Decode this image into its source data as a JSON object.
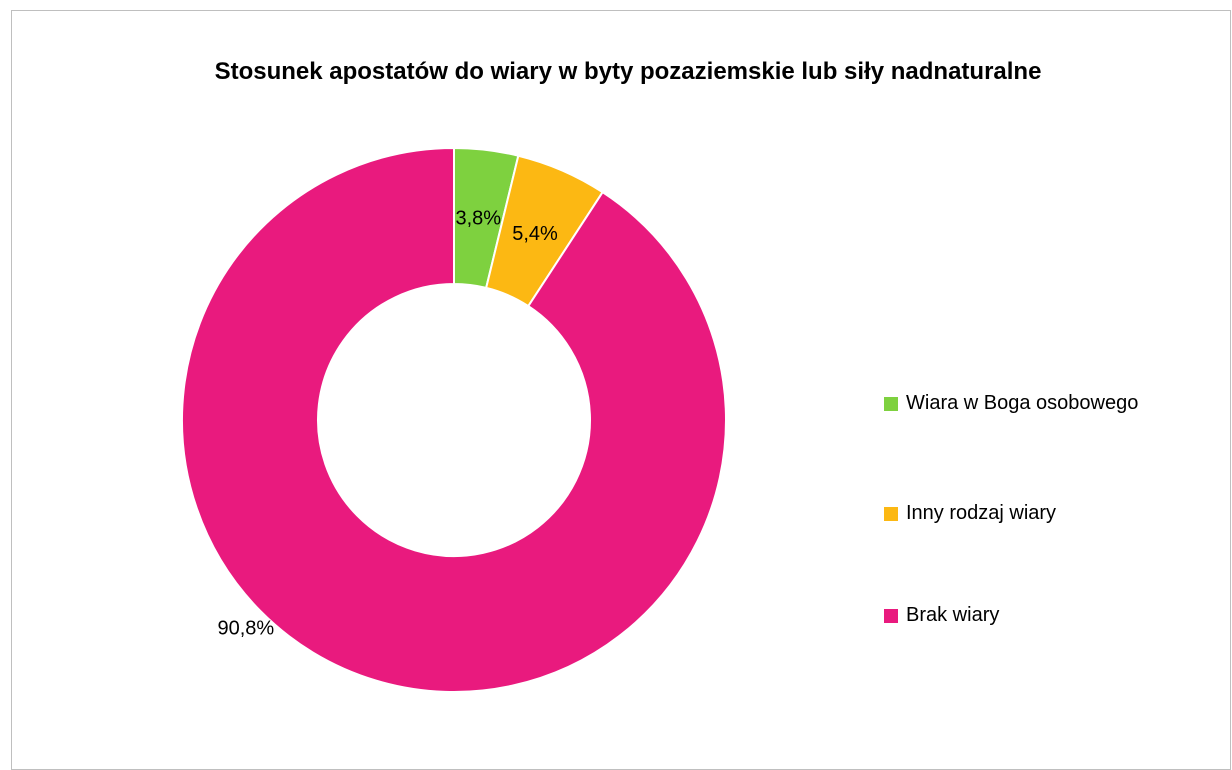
{
  "chart_data": {
    "type": "pie",
    "variant": "doughnut",
    "title": "Stosunek apostatów do wiary w byty pozaziemskie lub siły nadnaturalne",
    "categories": [
      "Wiara w Boga osobowego",
      "Inny rodzaj wiary",
      "Brak wiary"
    ],
    "values": [
      3.8,
      5.4,
      90.8
    ],
    "data_labels": [
      "3,8%",
      "5,4%",
      "90,8%"
    ],
    "colors": [
      "#7ed13f",
      "#fcb813",
      "#e91a7e"
    ],
    "legend_position": "right"
  }
}
